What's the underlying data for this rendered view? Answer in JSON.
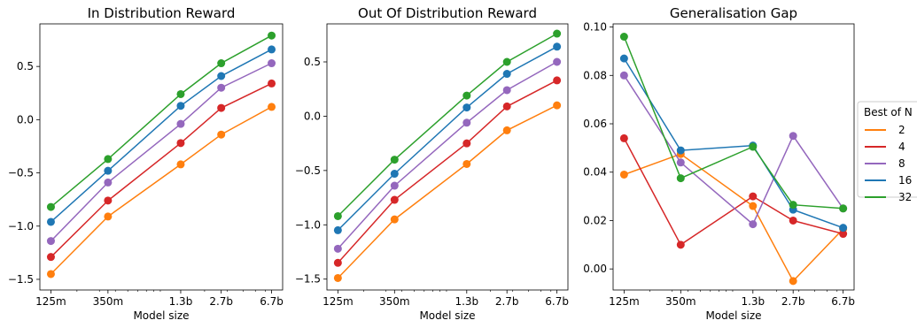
{
  "chart_data": [
    {
      "type": "line",
      "title": "In Distribution Reward",
      "xlabel": "Model size",
      "ylabel": "",
      "x_scale": "log",
      "categories": [
        "125m",
        "350m",
        "1.3b",
        "2.7b",
        "6.7b"
      ],
      "x_values": [
        125,
        350,
        1300,
        2700,
        6700
      ],
      "ylim": [
        -1.6,
        0.9
      ],
      "yticks": [
        "−1.5",
        "−1.0",
        "−0.5",
        "0.0",
        "0.5"
      ],
      "ytick_values": [
        -1.5,
        -1.0,
        -0.5,
        0.0,
        0.5
      ],
      "series": [
        {
          "name": "2",
          "color": "#ff7f0e",
          "values": [
            -1.45,
            -0.91,
            -0.42,
            -0.14,
            0.12
          ]
        },
        {
          "name": "4",
          "color": "#d62728",
          "values": [
            -1.29,
            -0.76,
            -0.22,
            0.11,
            0.34
          ]
        },
        {
          "name": "8",
          "color": "#9467bd",
          "values": [
            -1.14,
            -0.59,
            -0.04,
            0.3,
            0.53
          ]
        },
        {
          "name": "16",
          "color": "#1f77b4",
          "values": [
            -0.96,
            -0.48,
            0.13,
            0.41,
            0.66
          ]
        },
        {
          "name": "32",
          "color": "#2ca02c",
          "values": [
            -0.82,
            -0.37,
            0.24,
            0.53,
            0.79
          ]
        }
      ]
    },
    {
      "type": "line",
      "title": "Out Of Distribution Reward",
      "xlabel": "Model size",
      "ylabel": "",
      "x_scale": "log",
      "categories": [
        "125m",
        "350m",
        "1.3b",
        "2.7b",
        "6.7b"
      ],
      "x_values": [
        125,
        350,
        1300,
        2700,
        6700
      ],
      "ylim": [
        -1.6,
        0.85
      ],
      "yticks": [
        "−1.5",
        "−1.0",
        "−0.5",
        "0.0",
        "0.5"
      ],
      "ytick_values": [
        -1.5,
        -1.0,
        -0.5,
        0.0,
        0.5
      ],
      "series": [
        {
          "name": "2",
          "color": "#ff7f0e",
          "values": [
            -1.49,
            -0.95,
            -0.44,
            -0.13,
            0.1
          ]
        },
        {
          "name": "4",
          "color": "#d62728",
          "values": [
            -1.35,
            -0.77,
            -0.25,
            0.09,
            0.33
          ]
        },
        {
          "name": "8",
          "color": "#9467bd",
          "values": [
            -1.22,
            -0.64,
            -0.06,
            0.24,
            0.5
          ]
        },
        {
          "name": "16",
          "color": "#1f77b4",
          "values": [
            -1.05,
            -0.53,
            0.08,
            0.39,
            0.64
          ]
        },
        {
          "name": "32",
          "color": "#2ca02c",
          "values": [
            -0.92,
            -0.4,
            0.19,
            0.5,
            0.76
          ]
        }
      ]
    },
    {
      "type": "line",
      "title": "Generalisation Gap",
      "xlabel": "Model size",
      "ylabel": "",
      "x_scale": "log",
      "categories": [
        "125m",
        "350m",
        "1.3b",
        "2.7b",
        "6.7b"
      ],
      "x_values": [
        125,
        350,
        1300,
        2700,
        6700
      ],
      "ylim": [
        -0.0087,
        0.1013
      ],
      "yticks": [
        "0.00",
        "0.02",
        "0.04",
        "0.06",
        "0.08",
        "0.10"
      ],
      "ytick_values": [
        0.0,
        0.02,
        0.04,
        0.06,
        0.08,
        0.1
      ],
      "series": [
        {
          "name": "2",
          "color": "#ff7f0e",
          "values": [
            0.039,
            0.0475,
            0.026,
            -0.005,
            0.0165
          ]
        },
        {
          "name": "4",
          "color": "#d62728",
          "values": [
            0.054,
            0.01,
            0.03,
            0.02,
            0.0145
          ]
        },
        {
          "name": "8",
          "color": "#9467bd",
          "values": [
            0.08,
            0.044,
            0.0185,
            0.055,
            0.025
          ]
        },
        {
          "name": "16",
          "color": "#1f77b4",
          "values": [
            0.087,
            0.049,
            0.051,
            0.0245,
            0.017
          ]
        },
        {
          "name": "32",
          "color": "#2ca02c",
          "values": [
            0.096,
            0.0375,
            0.0505,
            0.0265,
            0.025
          ]
        }
      ]
    }
  ],
  "legend": {
    "title": "Best of N",
    "placement": "right",
    "entries": [
      {
        "label": "2",
        "color": "#ff7f0e"
      },
      {
        "label": "4",
        "color": "#d62728"
      },
      {
        "label": "8",
        "color": "#9467bd"
      },
      {
        "label": "16",
        "color": "#1f77b4"
      },
      {
        "label": "32",
        "color": "#2ca02c"
      }
    ]
  }
}
